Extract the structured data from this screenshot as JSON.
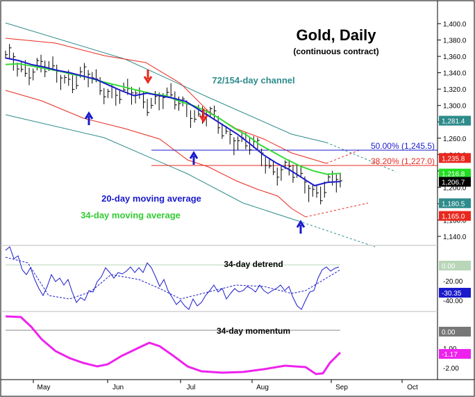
{
  "chart_data": {
    "type": "line",
    "title": "Gold, Daily",
    "subtitle": "(continuous contract)",
    "x_ticks": [
      "May",
      "Jun",
      "Jul",
      "Aug",
      "Sep",
      "Oct"
    ],
    "y_ticks": [
      "1,400.0",
      "1,380.0",
      "1,360.0",
      "1,340.0",
      "1,320.0",
      "1,300.0",
      "1,280.0",
      "1,260.0",
      "1,240.0",
      "1,220.0",
      "1,200.0",
      "1,180.0",
      "1,160.0",
      "1,140.0"
    ],
    "ylim": [
      1130,
      1410
    ],
    "annotations": {
      "channel": "72/154-day channel",
      "ma20": "20-day moving average",
      "ma34": "34-day moving average",
      "fib50": "50.00% (1,245.5)",
      "fib382": "38.20% (1,227.0)"
    },
    "price_tags": [
      {
        "label": "1,281.4",
        "value": 1281.4,
        "color": "#2e8b8b"
      },
      {
        "label": "1,235.8",
        "value": 1235.8,
        "color": "#e8281e"
      },
      {
        "label": "1,216.8",
        "value": 1216.8,
        "color": "#22dd22"
      },
      {
        "label": "1,206.7",
        "value": 1206.7,
        "color": "#000000"
      },
      {
        "label": "1,180.5",
        "value": 1180.5,
        "color": "#2e8b8b"
      },
      {
        "label": "1,165.0",
        "value": 1165.0,
        "color": "#e8281e"
      }
    ],
    "series": [
      {
        "name": "20-day moving average",
        "color": "#1a1acc",
        "values": [
          1358,
          1355,
          1350,
          1347,
          1343,
          1340,
          1336,
          1332,
          1325,
          1318,
          1312,
          1315,
          1312,
          1309,
          1305,
          1295,
          1285,
          1275,
          1265,
          1253,
          1240,
          1230,
          1222,
          1212,
          1202,
          1206,
          1207
        ]
      },
      {
        "name": "34-day moving average",
        "color": "#33dd33",
        "values": [
          1350,
          1351,
          1348,
          1345,
          1342,
          1338,
          1335,
          1330,
          1326,
          1322,
          1318,
          1314,
          1312,
          1305,
          1300,
          1293,
          1284,
          1273,
          1264,
          1252,
          1243,
          1234,
          1226,
          1220,
          1216,
          1217
        ]
      }
    ],
    "detrend": {
      "title": "34-day detrend",
      "ticks": [
        "0.00",
        "-20.00",
        "-40.00"
      ],
      "tags": [
        {
          "label": "0.00",
          "color": "#b9d6b9"
        },
        {
          "label": "-30.35",
          "color": "#1a1acc"
        }
      ]
    },
    "momentum": {
      "title": "34-day momentum",
      "ticks": [
        "1.00",
        "-2.00"
      ],
      "tags": [
        {
          "label": "0.00",
          "color": "#777777"
        },
        {
          "label": "-1.17",
          "color": "#ee22ee"
        }
      ]
    }
  }
}
